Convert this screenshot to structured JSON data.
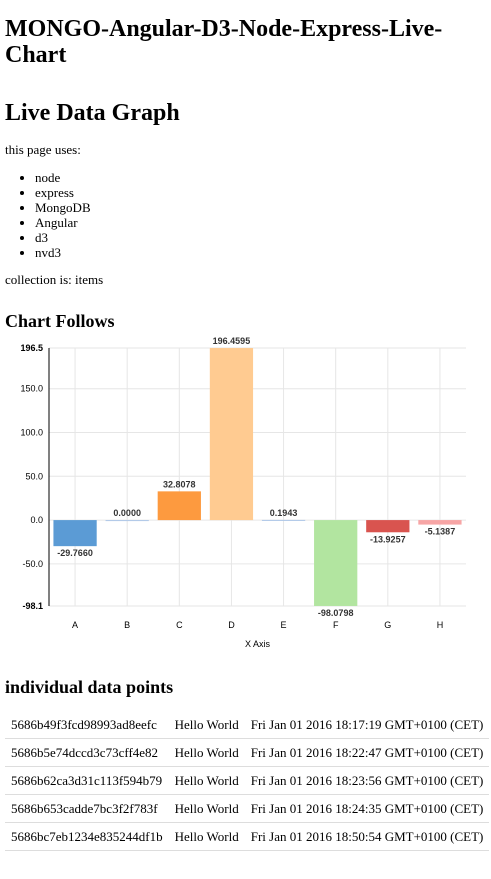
{
  "header": {
    "app_title": "MONGO-Angular-D3-Node-Express-Live-Chart"
  },
  "main": {
    "page_title": "Live Data Graph",
    "uses_label": "this page uses:",
    "technologies": [
      "node",
      "express",
      "MongoDB",
      "Angular",
      "d3",
      "nvd3"
    ],
    "collection_text": "collection is: items",
    "chart_heading": "Chart Follows",
    "points_heading": "individual data points"
  },
  "chart_data": {
    "type": "bar",
    "categories": [
      "A",
      "B",
      "C",
      "D",
      "E",
      "F",
      "G",
      "H"
    ],
    "values": [
      -29.766,
      0.0,
      32.8078,
      196.4595,
      0.1943,
      -98.0798,
      -13.9257,
      -5.1387
    ],
    "value_labels": [
      "-29.7660",
      "0.0000",
      "32.8078",
      "196.4595",
      "0.1943",
      "-98.0798",
      "-13.9257",
      "-5.1387"
    ],
    "colors": [
      "#5b9bd5",
      "#aec7e8",
      "#fd9a3f",
      "#ffcb91",
      "#aec7e8",
      "#b2e5a0",
      "#d9544f",
      "#f7a5a5"
    ],
    "ylim": [
      -98.1,
      196.5
    ],
    "yticks": [
      196.5,
      150.0,
      100.0,
      50.0,
      0.0,
      -50.0,
      -98.1
    ],
    "ytick_labels": [
      "196.5",
      "150.0",
      "100.0",
      "50.0",
      "0.0",
      "-50.0",
      "-98.1"
    ],
    "xlabel": "X Axis",
    "ylabel": "",
    "grid": true
  },
  "data_points": [
    {
      "id": "5686b49f3fcd98993ad8eefc",
      "message": "Hello World",
      "date": "Fri Jan 01 2016 18:17:19 GMT+0100 (CET)"
    },
    {
      "id": "5686b5e74dccd3c73cff4e82",
      "message": "Hello World",
      "date": "Fri Jan 01 2016 18:22:47 GMT+0100 (CET)"
    },
    {
      "id": "5686b62ca3d31c113f594b79",
      "message": "Hello World",
      "date": "Fri Jan 01 2016 18:23:56 GMT+0100 (CET)"
    },
    {
      "id": "5686b653cadde7bc3f2f783f",
      "message": "Hello World",
      "date": "Fri Jan 01 2016 18:24:35 GMT+0100 (CET)"
    },
    {
      "id": "5686bc7eb1234e835244df1b",
      "message": "Hello World",
      "date": "Fri Jan 01 2016 18:50:54 GMT+0100 (CET)"
    }
  ]
}
